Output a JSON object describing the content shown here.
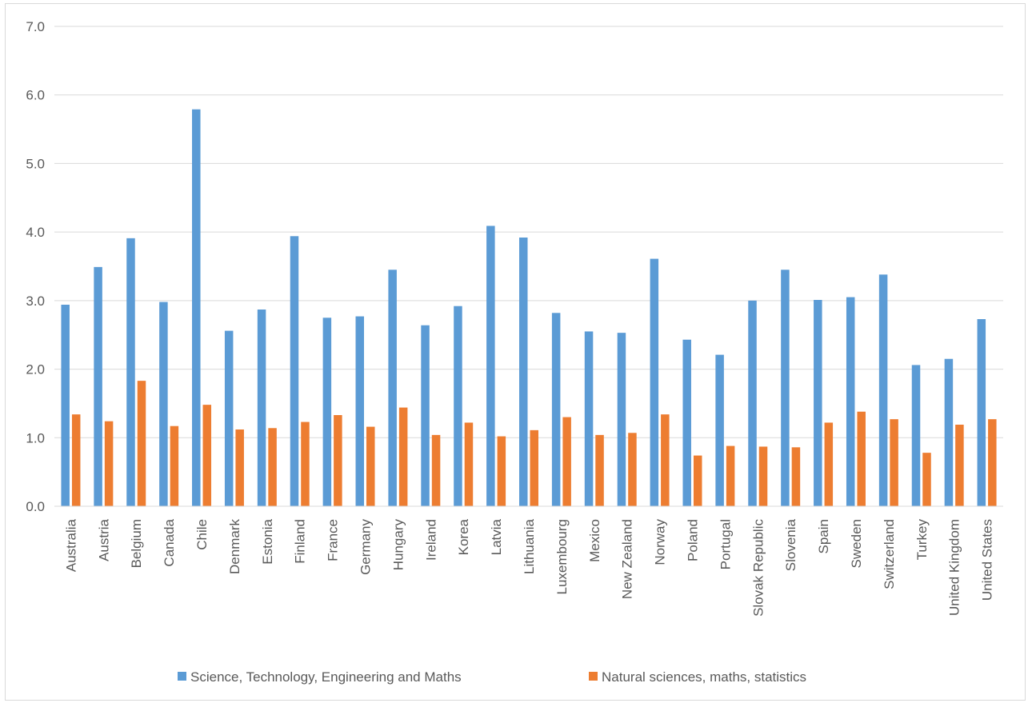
{
  "chart_data": {
    "type": "bar",
    "title": "",
    "xlabel": "",
    "ylabel": "",
    "ylim": [
      0,
      7
    ],
    "yticks": [
      "0.0",
      "1.0",
      "2.0",
      "3.0",
      "4.0",
      "5.0",
      "6.0",
      "7.0"
    ],
    "grid": true,
    "legend_position": "bottom",
    "categories": [
      "Australia",
      "Austria",
      "Belgium",
      "Canada",
      "Chile",
      "Denmark",
      "Estonia",
      "Finland",
      "France",
      "Germany",
      "Hungary",
      "Ireland",
      "Korea",
      "Latvia",
      "Lithuania",
      "Luxembourg",
      "Mexico",
      "New Zealand",
      "Norway",
      "Poland",
      "Portugal",
      "Slovak Republic",
      "Slovenia",
      "Spain",
      "Sweden",
      "Switzerland",
      "Turkey",
      "United Kingdom",
      "United States"
    ],
    "series": [
      {
        "name": "Science, Technology, Engineering and Maths",
        "color": "#5b9bd5",
        "values": [
          2.94,
          3.49,
          3.91,
          2.98,
          5.79,
          2.56,
          2.87,
          3.94,
          2.75,
          2.77,
          3.45,
          2.64,
          2.92,
          4.09,
          3.92,
          2.82,
          2.55,
          2.53,
          3.61,
          2.43,
          2.21,
          3.0,
          3.45,
          3.01,
          3.05,
          3.38,
          2.06,
          2.15,
          2.73
        ]
      },
      {
        "name": "Natural sciences, maths, statistics",
        "color": "#ed7d31",
        "values": [
          1.34,
          1.24,
          1.83,
          1.17,
          1.48,
          1.12,
          1.14,
          1.23,
          1.33,
          1.16,
          1.44,
          1.04,
          1.22,
          1.02,
          1.11,
          1.3,
          1.04,
          1.07,
          1.34,
          0.74,
          0.88,
          0.87,
          0.86,
          1.22,
          1.38,
          1.27,
          0.78,
          1.19,
          1.27
        ]
      }
    ]
  }
}
